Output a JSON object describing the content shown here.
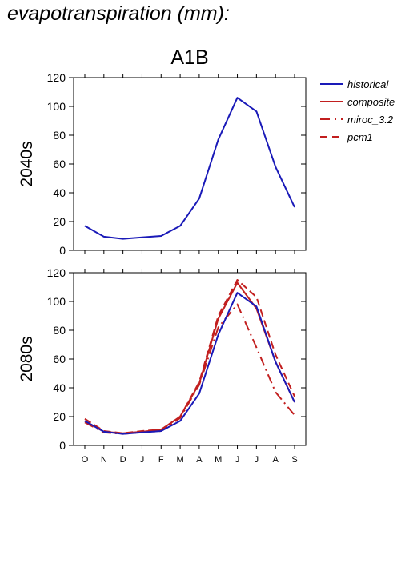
{
  "figure_title": "evapotranspiration (mm):",
  "scenario_title": "A1B",
  "colors": {
    "historical": "#1a1ab8",
    "composite": "#c21f1f",
    "miroc_3.2": "#c21f1f",
    "pcm1": "#c21f1f"
  },
  "chart_data": [
    {
      "type": "line",
      "row_label": "2040s",
      "categories": [
        "O",
        "N",
        "D",
        "J",
        "F",
        "M",
        "A",
        "M",
        "J",
        "J",
        "A",
        "S"
      ],
      "ylim": [
        0,
        120
      ],
      "yticks": [
        0,
        20,
        40,
        60,
        80,
        100,
        120
      ],
      "grid": false,
      "legend": "right",
      "series": [
        {
          "name": "historical",
          "style": "solid",
          "values": [
            17,
            9.5,
            8,
            9,
            10,
            17,
            36,
            77,
            106,
            96.5,
            58,
            30
          ]
        }
      ]
    },
    {
      "type": "line",
      "row_label": "2080s",
      "categories": [
        "O",
        "N",
        "D",
        "J",
        "F",
        "M",
        "A",
        "M",
        "J",
        "J",
        "A",
        "S"
      ],
      "ylim": [
        0,
        120
      ],
      "yticks": [
        0,
        20,
        40,
        60,
        80,
        100,
        120
      ],
      "grid": false,
      "series": [
        {
          "name": "historical",
          "style": "solid",
          "values": [
            17,
            9.5,
            8,
            9,
            10,
            17,
            36,
            77,
            106,
            96.5,
            58,
            30
          ]
        },
        {
          "name": "composite",
          "style": "solid",
          "values": [
            17,
            9.5,
            8.5,
            9.5,
            11,
            20,
            43,
            88,
            113,
            95,
            58,
            30
          ]
        },
        {
          "name": "miroc_3.2",
          "style": "dashdot",
          "values": [
            16,
            9,
            8,
            9,
            10,
            19,
            42,
            82,
            98,
            68,
            37,
            21
          ]
        },
        {
          "name": "pcm1",
          "style": "dashed",
          "values": [
            18.5,
            10,
            8.5,
            10,
            11,
            20,
            44,
            90,
            115,
            103,
            63,
            34
          ]
        }
      ]
    }
  ]
}
